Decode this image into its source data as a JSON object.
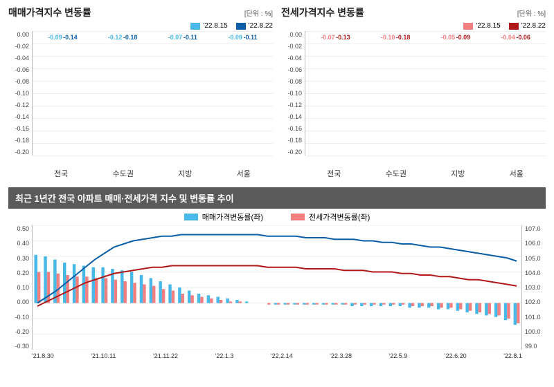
{
  "sale_chart": {
    "title": "매매가격지수 변동률",
    "unit": "[단위 : %]",
    "legend": [
      "'22.8.15",
      "'22.8.22"
    ],
    "legend_colors": [
      "#48b8e8",
      "#0a5ea8"
    ],
    "categories": [
      "전국",
      "수도권",
      "지방",
      "서울"
    ],
    "series1": [
      -0.09,
      -0.12,
      -0.07,
      -0.09
    ],
    "series2": [
      -0.14,
      -0.18,
      -0.11,
      -0.11
    ],
    "ylim": [
      0.0,
      -0.2
    ],
    "ytick_step": 0.02,
    "color1": "#48b8e8",
    "color2": "#0a5ea8"
  },
  "jeonse_chart": {
    "title": "전세가격지수 변동률",
    "unit": "[단위 : %]",
    "legend": [
      "'22.8.15",
      "'22.8.22"
    ],
    "legend_colors": [
      "#f08080",
      "#b01818"
    ],
    "categories": [
      "전국",
      "수도권",
      "지방",
      "서울"
    ],
    "series1": [
      -0.07,
      -0.1,
      -0.05,
      -0.04
    ],
    "series2": [
      -0.13,
      -0.18,
      -0.09,
      -0.06
    ],
    "ylim": [
      0.0,
      -0.2
    ],
    "ytick_step": 0.02,
    "color1": "#f08080",
    "color2": "#b01818"
  },
  "trend_chart": {
    "title": "최근 1년간 전국 아파트 매매·전세가격 지수 및 변동률 추이",
    "legend": [
      "매매가격변동률(좌)",
      "전세가격변동률(좌)"
    ],
    "legend_colors": [
      "#48b8e8",
      "#f08080"
    ],
    "line_colors": [
      "#0a5ea8",
      "#b01818"
    ],
    "yleft_lim": [
      -0.3,
      0.5
    ],
    "yleft_ticks": [
      0.5,
      0.4,
      0.3,
      0.2,
      0.1,
      0.0,
      -0.1,
      -0.2,
      -0.3
    ],
    "yright_lim": [
      99.0,
      107.0
    ],
    "yright_ticks": [
      107.0,
      106.0,
      105.0,
      104.0,
      103.0,
      102.0,
      101.0,
      100.0,
      99.0
    ],
    "x_labels": [
      "'21.8.30",
      "'21.10.11",
      "'21.11.22",
      "'22.1.3",
      "'22.2.14",
      "'22.3.28",
      "'22.5.9",
      "'22.6.20",
      "'22.8.1"
    ],
    "sale_bars": [
      0.31,
      0.3,
      0.28,
      0.26,
      0.25,
      0.24,
      0.23,
      0.23,
      0.22,
      0.21,
      0.2,
      0.18,
      0.16,
      0.14,
      0.12,
      0.1,
      0.08,
      0.06,
      0.05,
      0.04,
      0.03,
      0.02,
      0.01,
      0.0,
      0.0,
      -0.01,
      -0.01,
      -0.01,
      -0.01,
      -0.01,
      -0.01,
      -0.01,
      -0.01,
      -0.02,
      -0.02,
      -0.02,
      -0.02,
      -0.02,
      -0.02,
      -0.03,
      -0.03,
      -0.03,
      -0.04,
      -0.04,
      -0.05,
      -0.06,
      -0.07,
      -0.08,
      -0.09,
      -0.11,
      -0.14
    ],
    "jeonse_bars": [
      0.2,
      0.2,
      0.19,
      0.18,
      0.17,
      0.17,
      0.16,
      0.16,
      0.15,
      0.14,
      0.13,
      0.12,
      0.11,
      0.09,
      0.08,
      0.06,
      0.05,
      0.04,
      0.03,
      0.02,
      0.01,
      0.01,
      0.0,
      0.0,
      -0.01,
      -0.01,
      -0.01,
      -0.01,
      -0.01,
      -0.01,
      -0.01,
      -0.01,
      -0.01,
      -0.01,
      -0.01,
      -0.01,
      -0.01,
      -0.01,
      -0.01,
      -0.02,
      -0.02,
      -0.02,
      -0.03,
      -0.03,
      -0.04,
      -0.05,
      -0.06,
      -0.07,
      -0.08,
      -0.1,
      -0.13
    ],
    "sale_line": [
      102.0,
      102.4,
      102.8,
      103.3,
      103.8,
      104.3,
      104.8,
      105.2,
      105.6,
      105.8,
      106.0,
      106.1,
      106.2,
      106.3,
      106.3,
      106.4,
      106.4,
      106.4,
      106.4,
      106.4,
      106.4,
      106.4,
      106.4,
      106.4,
      106.3,
      106.3,
      106.3,
      106.3,
      106.2,
      106.2,
      106.2,
      106.1,
      106.1,
      106.1,
      106.0,
      106.0,
      105.9,
      105.9,
      105.8,
      105.8,
      105.7,
      105.6,
      105.6,
      105.5,
      105.4,
      105.3,
      105.2,
      105.1,
      105.0,
      104.9,
      104.7
    ],
    "jeonse_line": [
      101.8,
      102.1,
      102.4,
      102.7,
      103.0,
      103.3,
      103.5,
      103.7,
      103.9,
      104.0,
      104.1,
      104.2,
      104.3,
      104.3,
      104.4,
      104.4,
      104.4,
      104.4,
      104.4,
      104.4,
      104.4,
      104.4,
      104.4,
      104.4,
      104.3,
      104.3,
      104.3,
      104.3,
      104.2,
      104.2,
      104.2,
      104.2,
      104.1,
      104.1,
      104.1,
      104.0,
      104.0,
      104.0,
      103.9,
      103.9,
      103.8,
      103.8,
      103.7,
      103.7,
      103.6,
      103.5,
      103.5,
      103.4,
      103.3,
      103.2,
      103.1
    ]
  }
}
